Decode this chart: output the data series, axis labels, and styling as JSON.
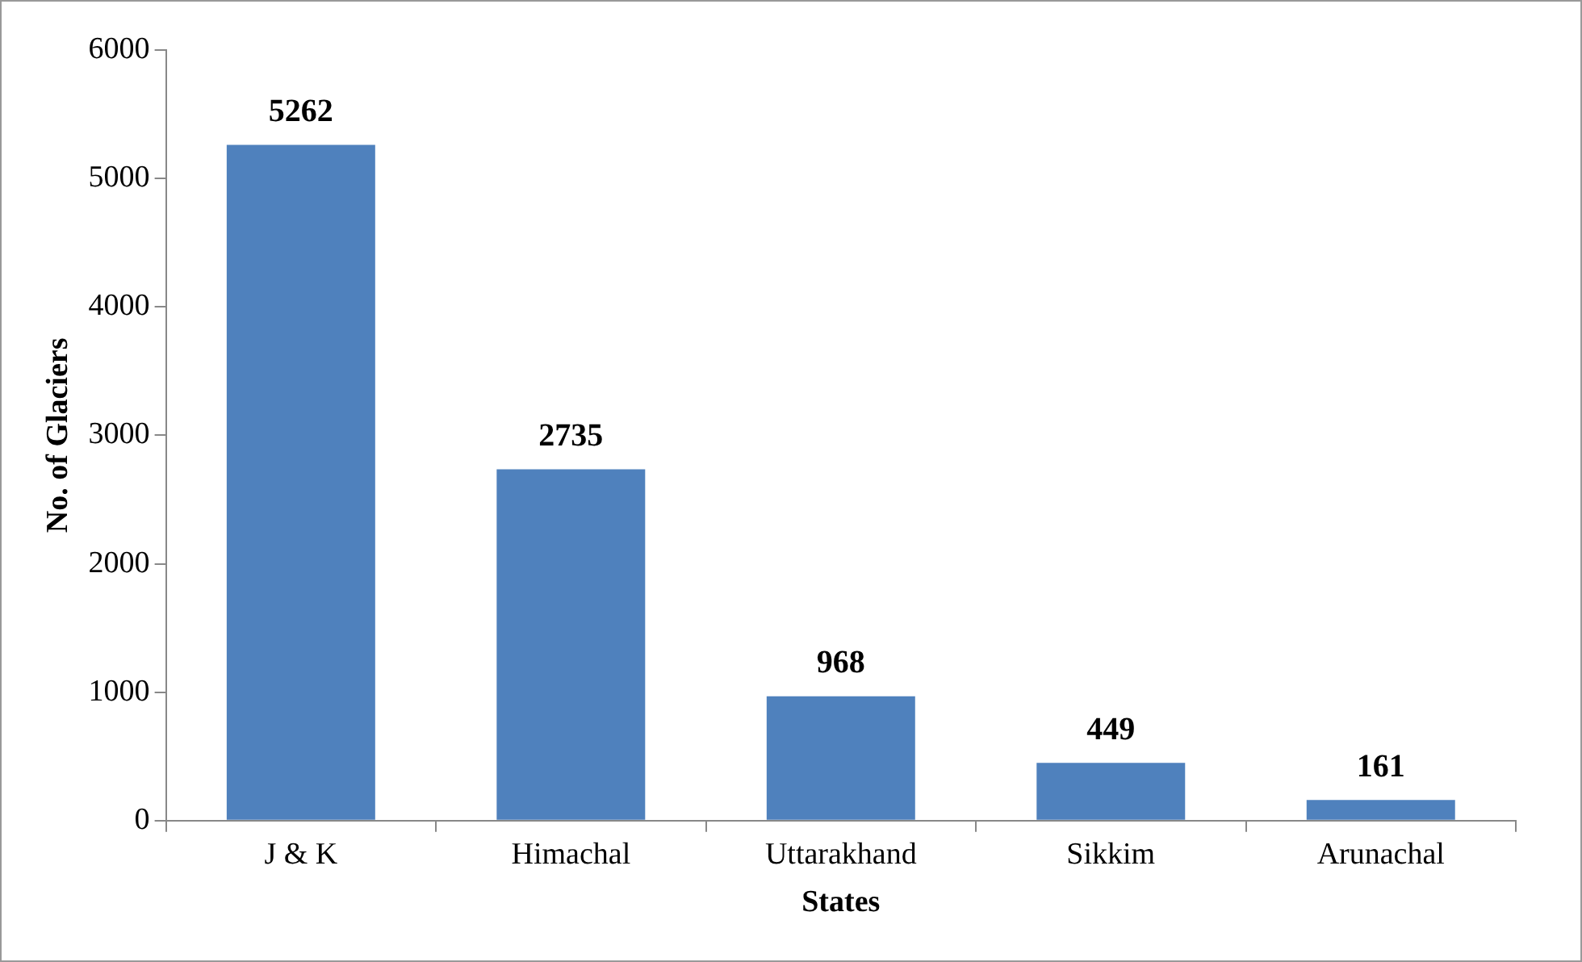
{
  "chart_data": {
    "type": "bar",
    "categories": [
      "J & K",
      "Himachal",
      "Uttarakhand",
      "Sikkim",
      "Arunachal"
    ],
    "values": [
      5262,
      2735,
      968,
      449,
      161
    ],
    "color": "#4f81bd",
    "xlabel": "States",
    "ylabel": "No. of Glaciers",
    "ylim": [
      0,
      6000
    ],
    "yticks": [
      0,
      1000,
      2000,
      3000,
      4000,
      5000,
      6000
    ],
    "data_labels": true,
    "grid": false,
    "legend": false
  }
}
